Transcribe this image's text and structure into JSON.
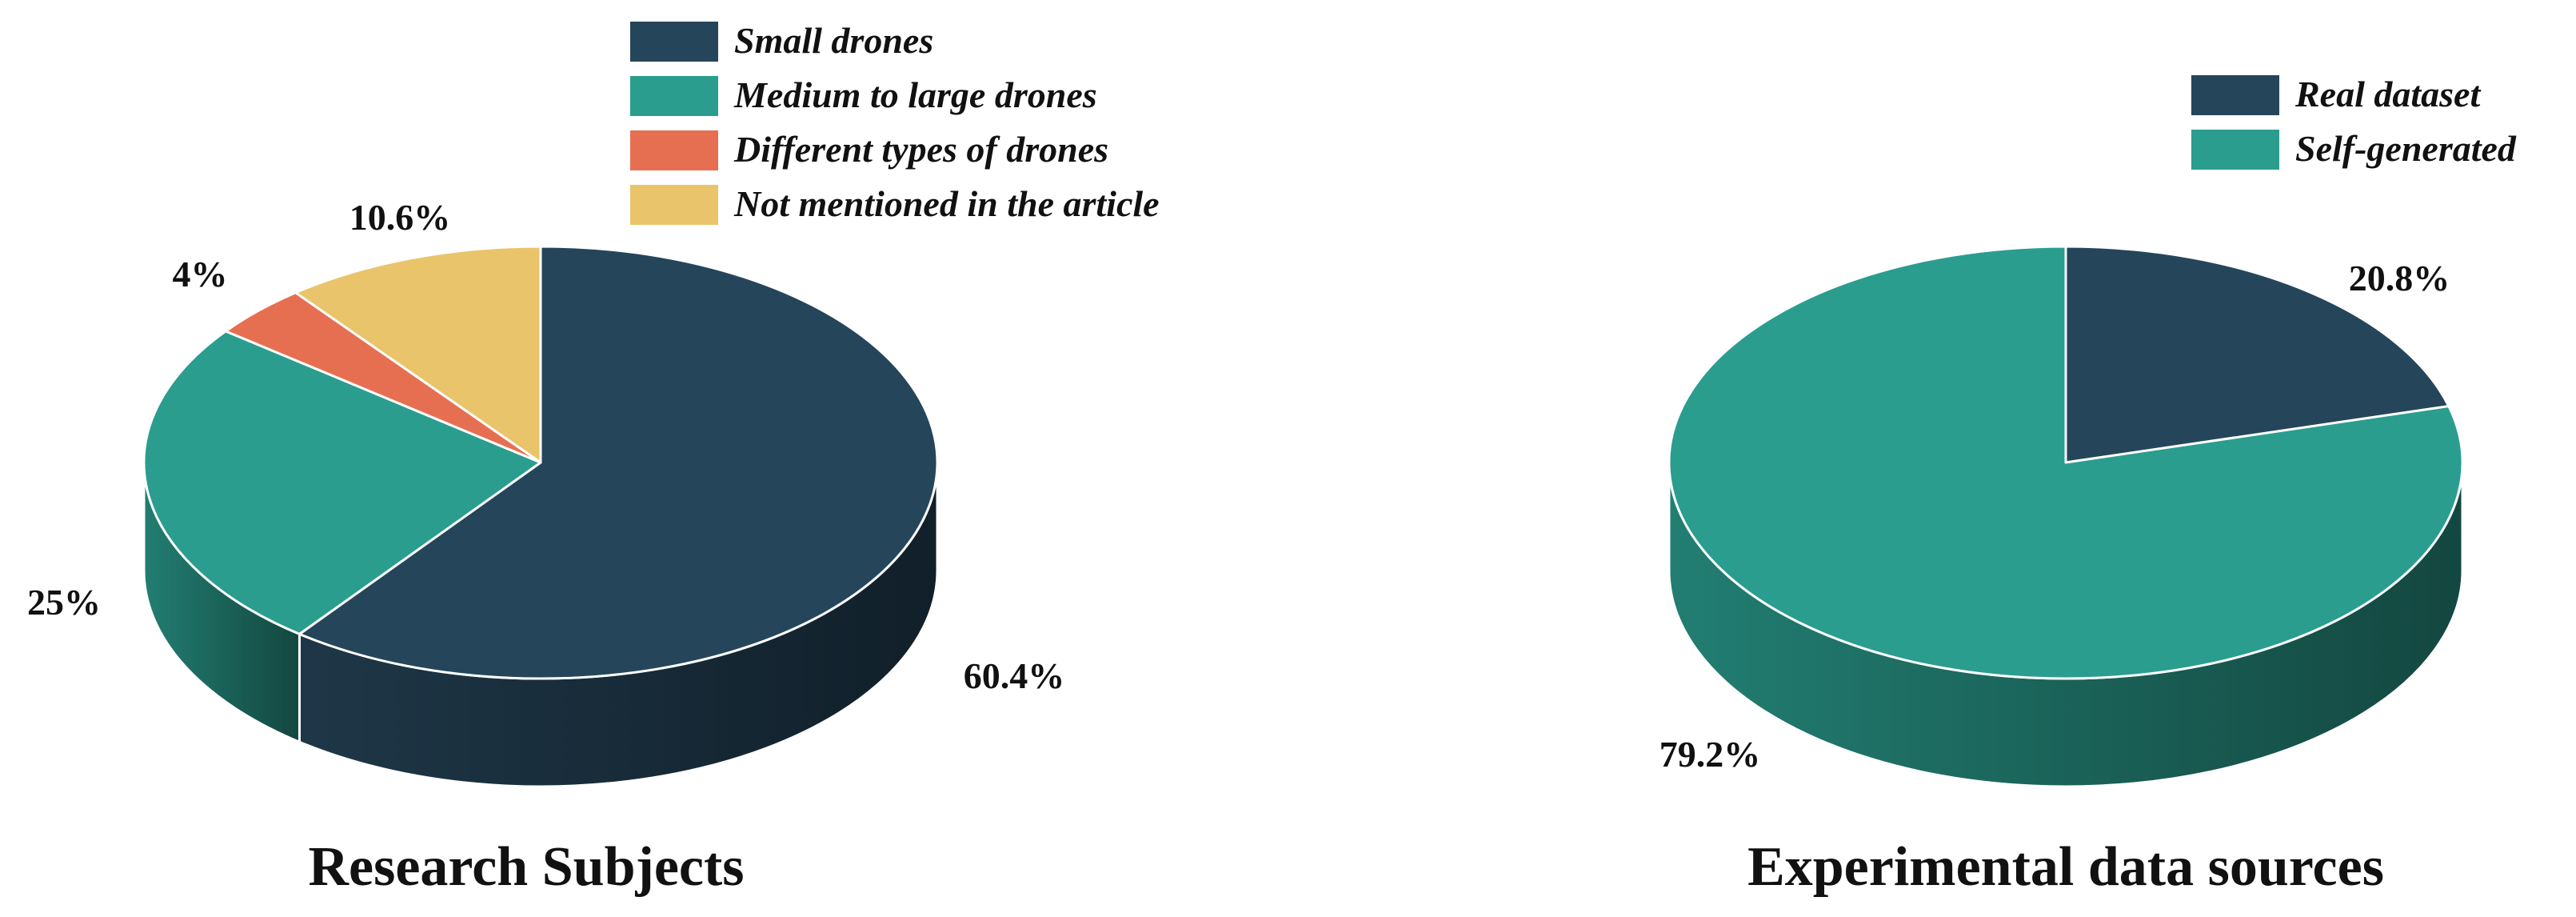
{
  "chart_data": [
    {
      "type": "pie",
      "title": "Research Subjects",
      "legend_position": "top",
      "slices": [
        {
          "name": "Small drones",
          "value": 60.4,
          "label": "60.4%",
          "color": "#25455a"
        },
        {
          "name": "Medium to large drones",
          "value": 25,
          "label": "25%",
          "color": "#2a9d8f"
        },
        {
          "name": "Different types of drones",
          "value": 4,
          "label": "4%",
          "color": "#e76f51"
        },
        {
          "name": "Not mentioned in the article",
          "value": 10.6,
          "label": "10.6%",
          "color": "#e9c46a"
        }
      ]
    },
    {
      "type": "pie",
      "title": "Experimental data sources",
      "legend_position": "top-right",
      "slices": [
        {
          "name": "Real dataset",
          "value": 20.8,
          "label": "20.8%",
          "color": "#25455a"
        },
        {
          "name": "Self-generated",
          "value": 79.2,
          "label": "79.2%",
          "color": "#2a9d8f"
        }
      ]
    }
  ]
}
